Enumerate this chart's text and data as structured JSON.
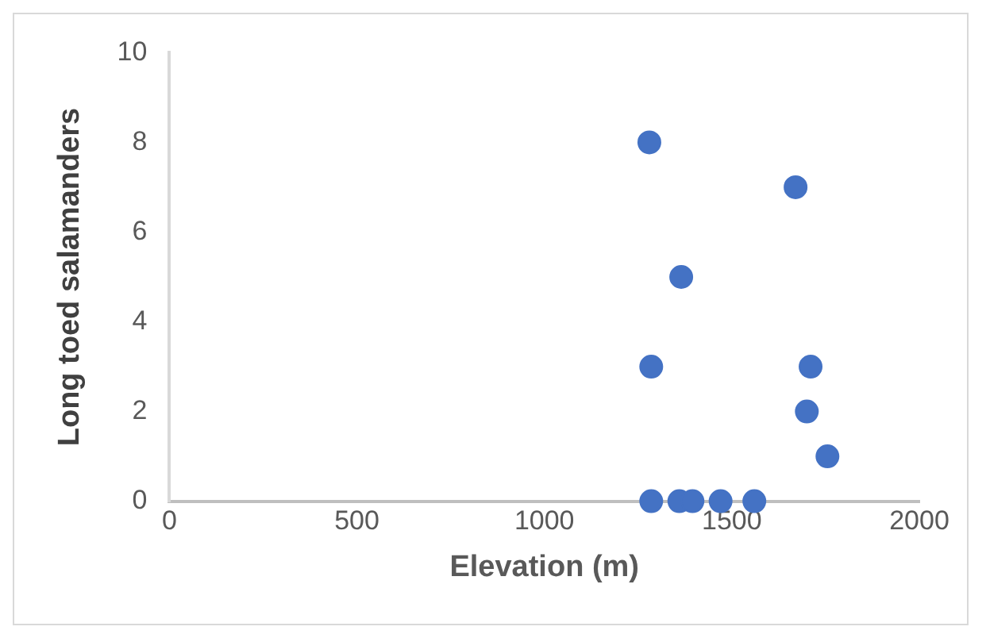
{
  "chart_data": {
    "type": "scatter",
    "xlabel": "Elevation (m)",
    "ylabel": "Long toed salamanders",
    "x": [
      1280,
      1670,
      1365,
      1285,
      1710,
      1700,
      1755,
      1285,
      1360,
      1395,
      1470,
      1560
    ],
    "values": [
      8,
      7,
      5,
      3,
      3,
      2,
      1,
      0,
      0,
      0,
      0,
      0
    ],
    "color": "#4472c4",
    "marker": "circle",
    "xlim": [
      0,
      2000
    ],
    "xticks": [
      0,
      500,
      1000,
      1500,
      2000
    ],
    "ylim": [
      0,
      10
    ],
    "yticks": [
      0,
      2,
      4,
      6,
      8,
      10
    ],
    "grid": false,
    "legend": false
  }
}
